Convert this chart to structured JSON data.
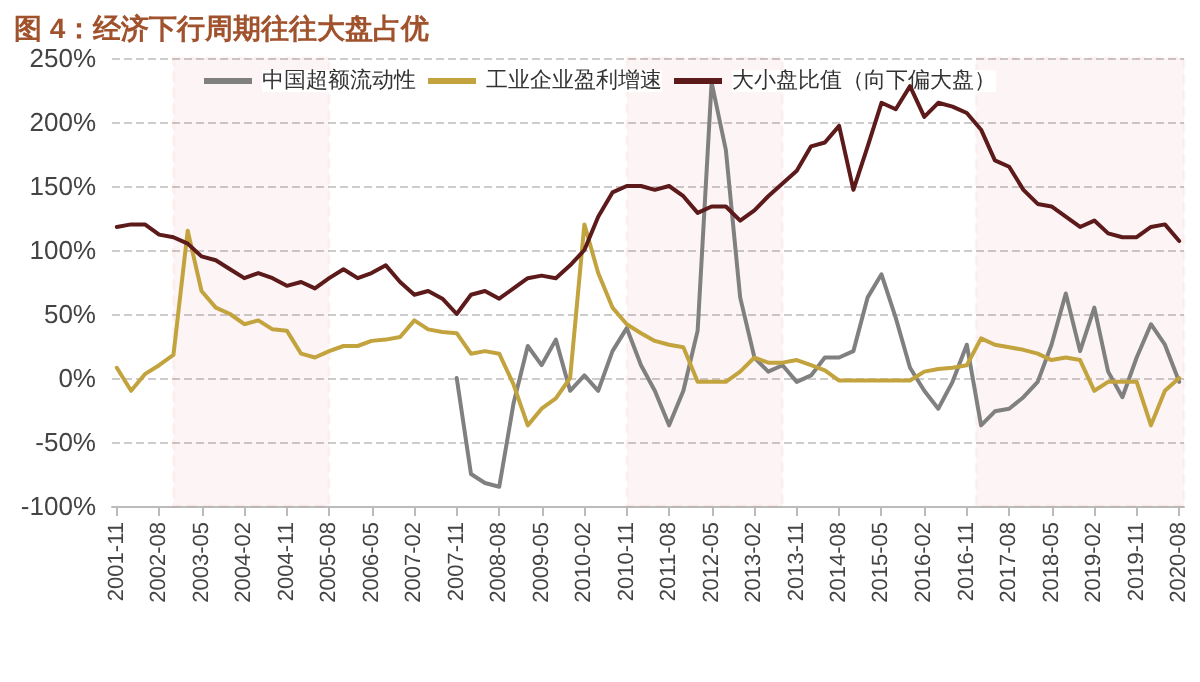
{
  "chart_data": {
    "type": "line",
    "title": "图 4：经济下行周期往往大盘占优",
    "x": [
      "2001-11",
      "2002-02",
      "2002-05",
      "2002-08",
      "2002-11",
      "2003-02",
      "2003-05",
      "2003-08",
      "2003-11",
      "2004-02",
      "2004-05",
      "2004-08",
      "2004-11",
      "2005-02",
      "2005-05",
      "2005-08",
      "2005-11",
      "2006-02",
      "2006-05",
      "2006-08",
      "2006-11",
      "2007-02",
      "2007-05",
      "2007-08",
      "2007-11",
      "2008-02",
      "2008-05",
      "2008-08",
      "2008-11",
      "2009-02",
      "2009-05",
      "2009-08",
      "2009-11",
      "2010-02",
      "2010-05",
      "2010-08",
      "2010-11",
      "2011-02",
      "2011-05",
      "2011-08",
      "2011-11",
      "2012-02",
      "2012-05",
      "2012-08",
      "2012-11",
      "2013-02",
      "2013-05",
      "2013-08",
      "2013-11",
      "2014-02",
      "2014-05",
      "2014-08",
      "2014-11",
      "2015-02",
      "2015-05",
      "2015-08",
      "2015-11",
      "2016-02",
      "2016-05",
      "2016-08",
      "2016-11",
      "2017-02",
      "2017-05",
      "2017-08",
      "2017-11",
      "2018-02",
      "2018-05",
      "2018-08",
      "2018-11",
      "2019-02",
      "2019-05",
      "2019-08",
      "2019-11",
      "2020-02",
      "2020-05",
      "2020-08"
    ],
    "series": [
      {
        "name": "中国超额流动性",
        "color": "#808080",
        "values": [
          null,
          null,
          null,
          null,
          null,
          null,
          null,
          null,
          null,
          null,
          null,
          null,
          null,
          null,
          null,
          null,
          null,
          null,
          null,
          null,
          null,
          null,
          null,
          null,
          0,
          -75,
          -82,
          -85,
          -20,
          25,
          10,
          30,
          -10,
          2,
          -10,
          21,
          39,
          10,
          -10,
          -37,
          -10,
          37,
          231,
          178,
          63,
          16,
          5,
          10,
          -3,
          2,
          16,
          16,
          21,
          63,
          81,
          47,
          8,
          -10,
          -24,
          -3,
          26,
          -37,
          -26,
          -24,
          -15,
          -3,
          26,
          66,
          21,
          55,
          5,
          -15,
          16,
          42,
          26,
          -3
        ]
      },
      {
        "name": "工业企业盈利增速",
        "color": "#c2a33e",
        "values": [
          8,
          -10,
          3,
          10,
          18,
          115,
          68,
          55,
          50,
          42,
          45,
          38,
          37,
          19,
          16,
          21,
          25,
          25,
          29,
          30,
          32,
          45,
          38,
          36,
          35,
          19,
          21,
          19,
          -5,
          -37,
          -24,
          -16,
          0,
          120,
          82,
          55,
          42,
          35,
          29,
          26,
          24,
          -3,
          -3,
          -3,
          5,
          16,
          12,
          12,
          14,
          10,
          6,
          -2,
          -2,
          -2,
          -2,
          -2,
          -2,
          5,
          7,
          8,
          10,
          31,
          26,
          24,
          22,
          19,
          14,
          16,
          14,
          -10,
          -3,
          -3,
          -3,
          -37,
          -10,
          0
        ]
      },
      {
        "name": "大小盘比值（向下偏大盘）",
        "color": "#5c1a1a",
        "values": [
          118,
          120,
          120,
          112,
          110,
          105,
          95,
          92,
          85,
          78,
          82,
          78,
          72,
          75,
          70,
          78,
          85,
          78,
          82,
          88,
          75,
          65,
          68,
          62,
          50,
          65,
          68,
          62,
          70,
          78,
          80,
          78,
          88,
          100,
          126,
          145,
          150,
          150,
          147,
          150,
          142,
          129,
          134,
          134,
          123,
          131,
          142,
          152,
          162,
          181,
          184,
          197,
          147,
          181,
          215,
          210,
          228,
          204,
          215,
          212,
          207,
          194,
          170,
          165,
          147,
          136,
          134,
          126,
          118,
          123,
          113,
          110,
          110,
          118,
          120,
          107
        ]
      }
    ],
    "xlim": [
      "2001-10",
      "2020-09"
    ],
    "xticks": [
      "2001-11",
      "2002-08",
      "2003-05",
      "2004-02",
      "2004-11",
      "2005-08",
      "2006-05",
      "2007-02",
      "2007-11",
      "2008-08",
      "2009-05",
      "2010-02",
      "2010-11",
      "2011-08",
      "2012-05",
      "2013-02",
      "2013-11",
      "2014-08",
      "2015-05",
      "2016-02",
      "2016-11",
      "2017-08",
      "2018-05",
      "2019-02",
      "2019-11",
      "2020-08"
    ],
    "ylim": [
      -100,
      250
    ],
    "yticks": [
      {
        "value": -100,
        "label": "-100%"
      },
      {
        "value": -50,
        "label": "-50%"
      },
      {
        "value": 0,
        "label": "0%"
      },
      {
        "value": 50,
        "label": "50%"
      },
      {
        "value": 100,
        "label": "100%"
      },
      {
        "value": 150,
        "label": "150%"
      },
      {
        "value": 200,
        "label": "200%"
      },
      {
        "value": 250,
        "label": "250%"
      }
    ],
    "bands": [
      {
        "axis": "x",
        "from": "2002-11",
        "to": "2005-08",
        "color": "#c00000"
      },
      {
        "axis": "x",
        "from": "2010-11",
        "to": "2013-08",
        "color": "#c00000"
      },
      {
        "axis": "x",
        "from": "2017-01",
        "to": "2020-09",
        "color": "#c00000"
      }
    ],
    "grid": "y",
    "legend": "top",
    "marker": "none",
    "line_style": "solid"
  }
}
